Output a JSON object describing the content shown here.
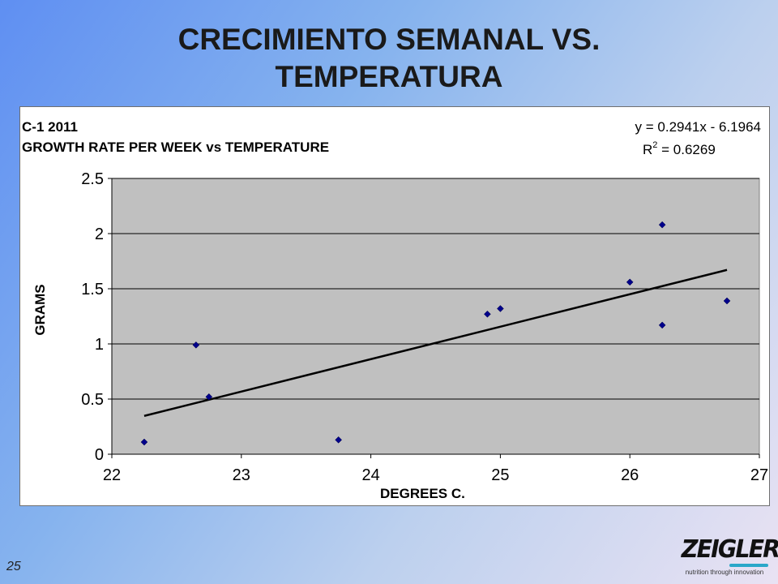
{
  "slide": {
    "title_line1": "CRECIMIENTO SEMANAL VS.",
    "title_line2": "TEMPERATURA",
    "page_number": "25"
  },
  "logo": {
    "name": "ZEIGLER.",
    "tagline": "nutrition through innovation",
    "accent_color": "#2aa7c9"
  },
  "chart_data": {
    "type": "scatter",
    "title_line1": "C-1 2011",
    "title_line2": "GROWTH RATE PER WEEK vs TEMPERATURE",
    "xlabel": "DEGREES C.",
    "ylabel": "GRAMS",
    "xlim": [
      22,
      27
    ],
    "ylim": [
      0,
      2.5
    ],
    "x_ticks": [
      "22",
      "23",
      "24",
      "25",
      "26",
      "27"
    ],
    "y_ticks": [
      "0",
      "0.5",
      "1",
      "1.5",
      "2",
      "2.5"
    ],
    "grid": "horizontal",
    "plot_background": "#c0c0c0",
    "marker_color": "#00008b",
    "points": [
      {
        "x": 22.25,
        "y": 0.11
      },
      {
        "x": 22.65,
        "y": 0.99
      },
      {
        "x": 22.75,
        "y": 0.52
      },
      {
        "x": 23.75,
        "y": 0.13
      },
      {
        "x": 24.9,
        "y": 1.27
      },
      {
        "x": 25.0,
        "y": 1.32
      },
      {
        "x": 26.0,
        "y": 1.56
      },
      {
        "x": 26.25,
        "y": 2.08
      },
      {
        "x": 26.25,
        "y": 1.17
      },
      {
        "x": 26.75,
        "y": 1.39
      }
    ],
    "trendline": {
      "slope": 0.2941,
      "intercept": -6.1964,
      "x_range": [
        22.25,
        26.75
      ],
      "equation": "y = 0.2941x - 6.1964",
      "r2_prefix": "R",
      "r2_exponent": "2",
      "r2_value": " = 0.6269"
    }
  }
}
